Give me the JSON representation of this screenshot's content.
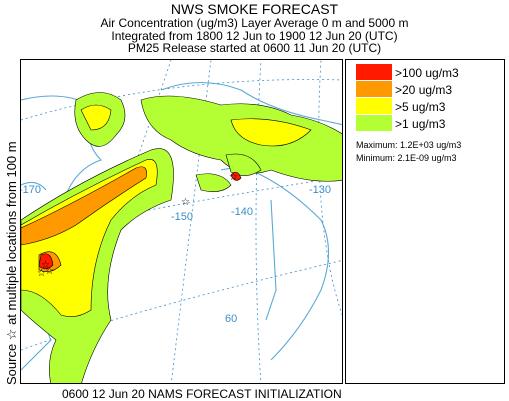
{
  "header": {
    "title": "NWS SMOKE FORECAST",
    "line2": "Air Concentration (ug/m3) Layer Average    0 m and  5000 m",
    "line3": "Integrated from 1800 12 Jun to 1900 12 Jun 20 (UTC)",
    "line4": "PM25 Release started at 0600 11 Jun 20 (UTC)"
  },
  "side_label": "Source ☆  at multiple locations    from   100 m",
  "legend": {
    "items": [
      {
        "label": ">100 ug/m3",
        "color": "#ff1a00"
      },
      {
        "label": ">20 ug/m3",
        "color": "#ff9900"
      },
      {
        "label": ">5 ug/m3",
        "color": "#ffff00"
      },
      {
        "label": ">1 ug/m3",
        "color": "#b3ff33"
      }
    ],
    "maximum": "Maximum: 1.2E+03 ug/m3",
    "minimum": "Minimum: 2.1E-09 ug/m3"
  },
  "map": {
    "longitude_labels": [
      "-170",
      "-150",
      "-140",
      "-130"
    ],
    "latitude_labels": [
      "60"
    ],
    "graticule_color": "#3b8fc8",
    "coast_color": "#5aa9d6",
    "source_marker": "☆"
  },
  "footer": "0600 12 Jun 20 NAMS FORECAST INITIALIZATION"
}
